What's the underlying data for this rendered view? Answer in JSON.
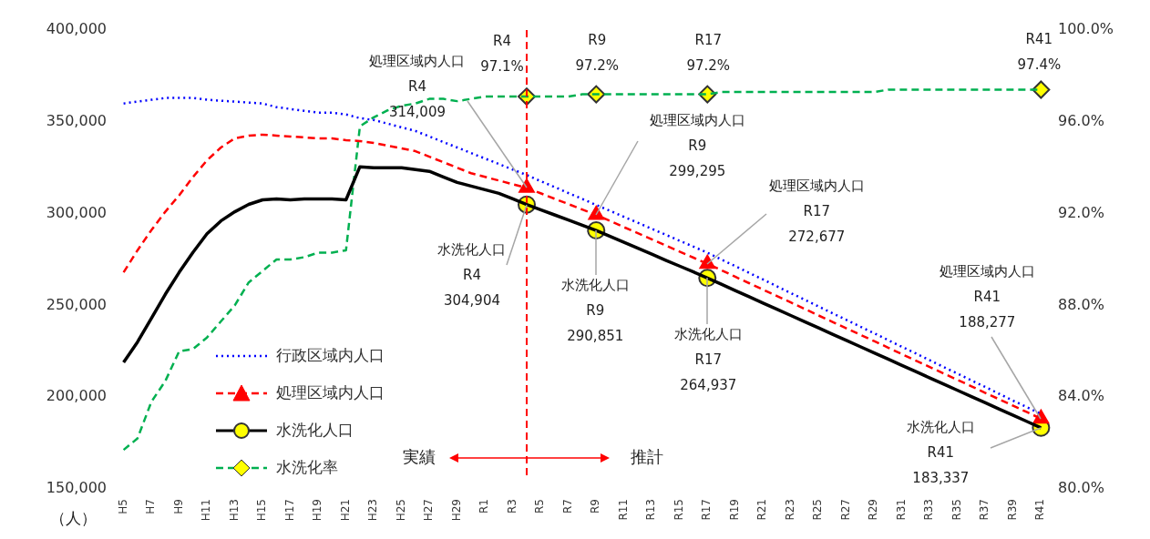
{
  "chart_data": {
    "type": "line",
    "ylabel": "（人）",
    "categories": [
      "H5",
      null,
      "H7",
      null,
      "H9",
      null,
      "H11",
      null,
      "H13",
      null,
      "H15",
      null,
      "H17",
      null,
      "H19",
      null,
      "H21",
      null,
      "H23",
      null,
      "H25",
      null,
      "H27",
      null,
      "H29",
      null,
      "R1",
      null,
      "R3",
      null,
      "R5",
      null,
      "R7",
      null,
      "R9",
      null,
      "R11",
      null,
      "R13",
      null,
      "R15",
      null,
      "R17",
      null,
      "R19",
      null,
      "R21",
      null,
      "R23",
      null,
      "R25",
      null,
      "R27",
      null,
      "R29",
      null,
      "R31",
      null,
      "R33",
      null,
      "R35",
      null,
      "R37",
      null,
      "R39",
      null,
      "R41"
    ],
    "series": [
      {
        "name": "行政区域内人口",
        "color": "#0000ff",
        "line_style": "dotted",
        "marker": "none",
        "values": [
          360000,
          361000,
          362000,
          363000,
          363000,
          363000,
          362000,
          361500,
          361000,
          360500,
          360000,
          358000,
          357000,
          356000,
          355000,
          355000,
          354000,
          352000,
          351000,
          349000,
          347000,
          345000,
          342000,
          339000,
          336000,
          333000,
          330000,
          327000,
          324000,
          321000,
          317700,
          314500,
          311200,
          308000,
          304700,
          301500,
          298200,
          295000,
          291700,
          288500,
          285200,
          282000,
          278700,
          275000,
          271400,
          267700,
          264100,
          260400,
          256700,
          253100,
          249400,
          245700,
          242100,
          238400,
          234800,
          231100,
          227400,
          223800,
          220100,
          216400,
          212800,
          209100,
          205500,
          201800,
          198100,
          194500,
          190800
        ]
      },
      {
        "name": "処理区域内人口",
        "color": "#ff0000",
        "line_style": "dashed",
        "marker": "none",
        "values": [
          268000,
          280000,
          291000,
          301000,
          310000,
          320000,
          329000,
          336000,
          341000,
          342500,
          343000,
          342500,
          342000,
          341500,
          341000,
          341000,
          340000,
          339500,
          338500,
          337000,
          335500,
          334000,
          331000,
          328000,
          325000,
          322000,
          320000,
          318000,
          316000,
          314009,
          311100,
          308100,
          305200,
          302200,
          299295,
          296000,
          292600,
          289300,
          286000,
          282700,
          279300,
          276000,
          272677,
          269200,
          265600,
          262100,
          258600,
          255100,
          251600,
          248100,
          244500,
          241000,
          237500,
          234000,
          230500,
          227000,
          223400,
          219900,
          216400,
          212900,
          209400,
          205900,
          202300,
          198800,
          195300,
          191800,
          188277
        ],
        "value_labels": [
          null,
          null,
          null,
          null,
          null,
          null,
          null,
          null,
          null,
          null,
          null,
          null,
          null,
          null,
          null,
          null,
          null,
          null,
          null,
          null,
          null,
          null,
          null,
          null,
          null,
          null,
          null,
          null,
          null,
          "処理区域内人口\nR4\n314,009",
          null,
          null,
          null,
          null,
          "処理区域内人口\nR9\n299,295",
          null,
          null,
          null,
          null,
          null,
          null,
          null,
          "処理区域内人口\nR17\n272,677",
          null,
          null,
          null,
          null,
          null,
          null,
          null,
          null,
          null,
          null,
          null,
          null,
          null,
          null,
          null,
          null,
          null,
          null,
          null,
          null,
          null,
          null,
          null,
          "処理区域内人口\nR41\n188,277"
        ]
      },
      {
        "name": "水洗化人口",
        "color": "#000000",
        "line_style": "solid",
        "marker": "none",
        "values": [
          219000,
          230000,
          243000,
          256000,
          268000,
          279000,
          289000,
          296000,
          301000,
          305000,
          307500,
          308000,
          307500,
          308000,
          308000,
          308000,
          307500,
          325500,
          325000,
          325000,
          325000,
          324000,
          323000,
          320000,
          317000,
          315000,
          313000,
          311000,
          308000,
          304904,
          302100,
          299300,
          296500,
          293700,
          290851,
          287600,
          284400,
          281100,
          277900,
          274600,
          271400,
          268200,
          264937,
          261500,
          258100,
          254700,
          251300,
          247900,
          244500,
          241100,
          237700,
          234300,
          230900,
          227500,
          224100,
          220700,
          217300,
          213900,
          210500,
          207100,
          203700,
          200300,
          196900,
          193500,
          190100,
          186700,
          183337
        ],
        "value_labels": [
          null,
          null,
          null,
          null,
          null,
          null,
          null,
          null,
          null,
          null,
          null,
          null,
          null,
          null,
          null,
          null,
          null,
          null,
          null,
          null,
          null,
          null,
          null,
          null,
          null,
          null,
          null,
          null,
          null,
          "水洗化人口\nR4\n304,904",
          null,
          null,
          null,
          null,
          "水洗化人口\nR9\n290,851",
          null,
          null,
          null,
          null,
          null,
          null,
          null,
          "水洗化人口\nR17\n264,937",
          null,
          null,
          null,
          null,
          null,
          null,
          null,
          null,
          null,
          null,
          null,
          null,
          null,
          null,
          null,
          null,
          null,
          null,
          null,
          null,
          null,
          null,
          null,
          "水洗化人口\nR41\n183,337"
        ]
      },
      {
        "name": "水洗化率",
        "color": "#00b050",
        "line_style": "dashed",
        "marker": "none",
        "axis": "y2",
        "values": [
          81.7,
          82.2,
          83.8,
          84.7,
          86.0,
          86.1,
          86.6,
          87.3,
          88.0,
          89.0,
          89.5,
          90.0,
          90.0,
          90.1,
          90.3,
          90.3,
          90.4,
          95.8,
          96.2,
          96.5,
          96.7,
          96.8,
          97.0,
          97.0,
          96.9,
          97.0,
          97.1,
          97.1,
          97.1,
          97.1,
          97.1,
          97.1,
          97.1,
          97.2,
          97.2,
          97.2,
          97.2,
          97.2,
          97.2,
          97.2,
          97.2,
          97.2,
          97.2,
          97.3,
          97.3,
          97.3,
          97.3,
          97.3,
          97.3,
          97.3,
          97.3,
          97.3,
          97.3,
          97.3,
          97.3,
          97.4,
          97.4,
          97.4,
          97.4,
          97.4,
          97.4,
          97.4,
          97.4,
          97.4,
          97.4,
          97.4,
          97.4
        ],
        "value_labels": [
          null,
          null,
          null,
          null,
          null,
          null,
          null,
          null,
          null,
          null,
          null,
          null,
          null,
          null,
          null,
          null,
          null,
          null,
          null,
          null,
          null,
          null,
          null,
          null,
          null,
          null,
          null,
          null,
          null,
          "R4\n97.1%",
          null,
          null,
          null,
          null,
          "R9\n97.2%",
          null,
          null,
          null,
          null,
          null,
          null,
          null,
          "R17\n97.2%",
          null,
          null,
          null,
          null,
          null,
          null,
          null,
          null,
          null,
          null,
          null,
          null,
          null,
          null,
          null,
          null,
          null,
          null,
          null,
          null,
          null,
          null,
          null,
          "R41\n97.4%"
        ]
      },
      {
        "type": "scatter",
        "color": "#ff0000",
        "marker": "triangle",
        "values": [
          null,
          null,
          null,
          null,
          null,
          null,
          null,
          null,
          null,
          null,
          null,
          null,
          null,
          null,
          null,
          null,
          null,
          null,
          null,
          null,
          null,
          null,
          null,
          null,
          null,
          null,
          null,
          null,
          null,
          314009,
          null,
          null,
          null,
          null,
          299295,
          null,
          null,
          null,
          null,
          null,
          null,
          null,
          272677,
          null,
          null,
          null,
          null,
          null,
          null,
          null,
          null,
          null,
          null,
          null,
          null,
          null,
          null,
          null,
          null,
          null,
          null,
          null,
          null,
          null,
          null,
          null,
          188277
        ]
      },
      {
        "type": "scatter",
        "color": "#ffff00",
        "marker": "circle",
        "values": [
          null,
          null,
          null,
          null,
          null,
          null,
          null,
          null,
          null,
          null,
          null,
          null,
          null,
          null,
          null,
          null,
          null,
          null,
          null,
          null,
          null,
          null,
          null,
          null,
          null,
          null,
          null,
          null,
          null,
          304904,
          null,
          null,
          null,
          null,
          290851,
          null,
          null,
          null,
          null,
          null,
          null,
          null,
          264937,
          null,
          null,
          null,
          null,
          null,
          null,
          null,
          null,
          null,
          null,
          null,
          null,
          null,
          null,
          null,
          null,
          null,
          null,
          null,
          null,
          null,
          null,
          null,
          183337
        ]
      },
      {
        "type": "scatter",
        "color": "#ffff00",
        "marker": "diamond",
        "axis": "y2",
        "values": [
          null,
          null,
          null,
          null,
          null,
          null,
          null,
          null,
          null,
          null,
          null,
          null,
          null,
          null,
          null,
          null,
          null,
          null,
          null,
          null,
          null,
          null,
          null,
          null,
          null,
          null,
          null,
          null,
          null,
          97.1,
          null,
          null,
          null,
          null,
          97.2,
          null,
          null,
          null,
          null,
          null,
          null,
          null,
          97.2,
          null,
          null,
          null,
          null,
          null,
          null,
          null,
          null,
          null,
          null,
          null,
          null,
          null,
          null,
          null,
          null,
          null,
          null,
          null,
          null,
          null,
          null,
          null,
          97.4
        ]
      }
    ],
    "ylim": [
      150000,
      400000
    ],
    "yticks": [
      {
        "value": 150000,
        "label": "150,000"
      },
      {
        "value": 200000,
        "label": "200,000"
      },
      {
        "value": 250000,
        "label": "250,000"
      },
      {
        "value": 300000,
        "label": "300,000"
      },
      {
        "value": 350000,
        "label": "350,000"
      },
      {
        "value": 400000,
        "label": "400,000"
      }
    ],
    "y2lim": [
      80,
      100
    ],
    "y2ticks": [
      {
        "value": 80,
        "label": "80.0%"
      },
      {
        "value": 84,
        "label": "84.0%"
      },
      {
        "value": 88,
        "label": "88.0%"
      },
      {
        "value": 92,
        "label": "92.0%"
      },
      {
        "value": 96,
        "label": "96.0%"
      },
      {
        "value": 100,
        "label": "100.0%"
      }
    ],
    "annotations": [
      "実績",
      "推計"
    ],
    "legend": "bottom left"
  }
}
